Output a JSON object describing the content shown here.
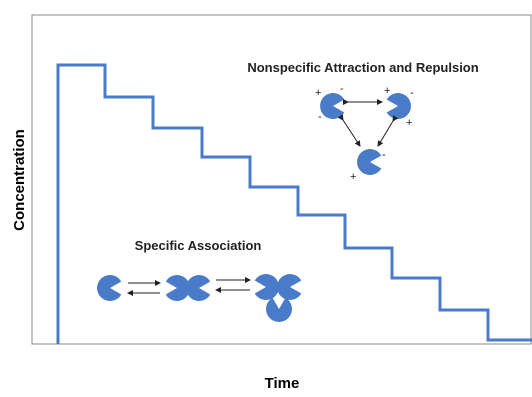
{
  "axes": {
    "y_label": "Concentration",
    "x_label": "Time"
  },
  "labels": {
    "nonspecific": "Nonspecific Attraction and Repulsion",
    "specific": "Specific Association"
  },
  "charges": {
    "plus": "+",
    "minus": "-"
  }
}
